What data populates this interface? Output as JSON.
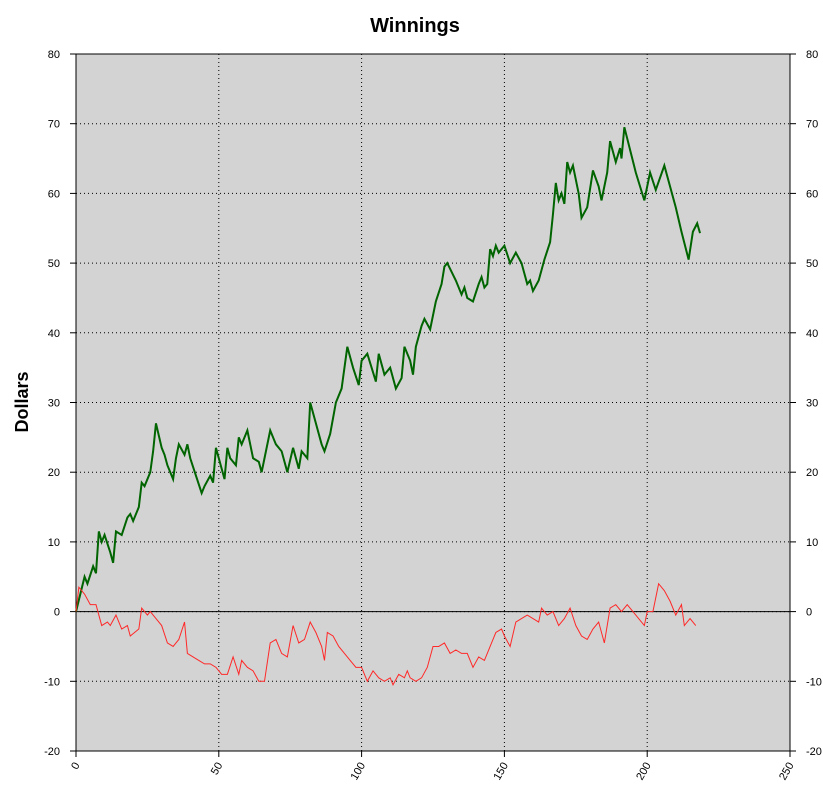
{
  "chart_data": {
    "type": "line",
    "title": "Winnings",
    "ylabel": "Dollars",
    "xlim": [
      0,
      250
    ],
    "xticks": [
      0,
      50,
      100,
      150,
      200,
      250
    ],
    "ylim": [
      -20,
      80
    ],
    "yticks": [
      -20,
      -10,
      0,
      10,
      20,
      30,
      40,
      50,
      60,
      70,
      80
    ],
    "grid": true,
    "background": "#d3d3d3",
    "series": [
      {
        "color": "#006400",
        "x": [
          0,
          3,
          4,
          6,
          7,
          8,
          9,
          10,
          12,
          13,
          14,
          16,
          18,
          19,
          20,
          22,
          23,
          24,
          26,
          27,
          28,
          30,
          31,
          32,
          34,
          35,
          36,
          38,
          39,
          40,
          42,
          44,
          45,
          47,
          48,
          49,
          50,
          52,
          53,
          54,
          56,
          57,
          58,
          60,
          61,
          62,
          64,
          65,
          66,
          68,
          70,
          72,
          74,
          76,
          78,
          79,
          81,
          82,
          84,
          86,
          87,
          89,
          91,
          93,
          95,
          97,
          99,
          100,
          102,
          105,
          106,
          108,
          110,
          112,
          114,
          115,
          117,
          118,
          119,
          121,
          122,
          124,
          126,
          128,
          129,
          130,
          133,
          135,
          136,
          137,
          139,
          141,
          142,
          143,
          144,
          145,
          146,
          147,
          148,
          150,
          152,
          154,
          156,
          158,
          159,
          160,
          162,
          164,
          166,
          167,
          168,
          169,
          170,
          171,
          172,
          173,
          174,
          176,
          177,
          179,
          181,
          183,
          184,
          186,
          187,
          189,
          190.5,
          191,
          192,
          196,
          199,
          201,
          203,
          206,
          210,
          212,
          214.5,
          216,
          217.5,
          218.5
        ],
        "values": [
          0,
          5,
          4,
          6.5,
          5.5,
          11.5,
          10,
          11,
          8.5,
          7,
          11.5,
          11,
          13.5,
          14,
          13,
          15,
          18.5,
          18,
          20,
          23,
          27,
          23.5,
          22.5,
          21,
          19,
          22,
          24,
          22.5,
          24,
          22,
          19.5,
          17,
          18,
          19.5,
          18.5,
          23.5,
          22,
          19,
          23.5,
          22,
          21,
          25,
          24,
          26,
          24,
          22,
          21.5,
          20,
          22,
          26,
          24,
          23,
          20,
          23.5,
          20.5,
          23,
          22,
          30,
          27,
          24,
          23,
          25.5,
          30,
          32,
          38,
          35,
          32.5,
          36,
          37,
          33,
          37,
          34,
          35,
          32,
          33.5,
          38,
          36,
          34,
          38,
          41,
          42,
          40.5,
          44.5,
          47,
          49.5,
          50,
          47.5,
          45.5,
          46.5,
          45,
          44.5,
          47,
          48,
          46.5,
          47,
          52,
          51,
          52.5,
          51.5,
          52.5,
          50,
          51.5,
          50,
          47,
          47.5,
          46,
          47.5,
          50.5,
          53,
          57,
          61.5,
          59,
          60,
          58.5,
          64.5,
          63,
          64,
          60,
          56.5,
          58,
          63.3,
          61,
          59,
          63,
          67.5,
          64.5,
          66.5,
          65,
          69.5,
          63,
          59,
          63,
          60.5,
          64,
          58,
          54.5,
          50.5,
          54.5,
          55.7,
          54.3
        ]
      },
      {
        "color": "#ff2828",
        "x": [
          0,
          1,
          3,
          5,
          7,
          9,
          11,
          12,
          14,
          16,
          18,
          19,
          22,
          23,
          25,
          26,
          28,
          30,
          32,
          34,
          36,
          38,
          39,
          41,
          43,
          45,
          47,
          49,
          51,
          53,
          55,
          57,
          58,
          60,
          62,
          64,
          66,
          68,
          70,
          72,
          74,
          76,
          78,
          80,
          82,
          84,
          86,
          87,
          88,
          90,
          92,
          94,
          96,
          98,
          100,
          102,
          104,
          106,
          108,
          110,
          111,
          113,
          115,
          116,
          117,
          119,
          121,
          123,
          125,
          127,
          129,
          131,
          133,
          135,
          137,
          139,
          141,
          143,
          145,
          147,
          149,
          150,
          152,
          154,
          156,
          158,
          160,
          162,
          163,
          165,
          167,
          169,
          171,
          173,
          175,
          177,
          179,
          181,
          183,
          185,
          187,
          189,
          191,
          193,
          195,
          197,
          199,
          200,
          202,
          204,
          206,
          208,
          210,
          212,
          213,
          215,
          217
        ],
        "values": [
          0,
          3.5,
          2.5,
          1,
          1,
          -2,
          -1.5,
          -2,
          -0.5,
          -2.5,
          -2,
          -3.5,
          -2.5,
          0.5,
          -0.5,
          0,
          -1,
          -2,
          -4.5,
          -5,
          -4,
          -1.5,
          -6,
          -6.5,
          -7,
          -7.5,
          -7.5,
          -8,
          -9,
          -9,
          -6.5,
          -9,
          -7,
          -8,
          -8.5,
          -10,
          -10,
          -4.5,
          -4,
          -6,
          -6.5,
          -2,
          -4.5,
          -4,
          -1.5,
          -3,
          -5,
          -7,
          -3,
          -3.5,
          -5,
          -6,
          -7,
          -8,
          -8,
          -10,
          -8.5,
          -9.5,
          -10,
          -9.5,
          -10.5,
          -9,
          -9.5,
          -8.5,
          -9.5,
          -10,
          -9.5,
          -8,
          -5,
          -5,
          -4.5,
          -6,
          -5.5,
          -6,
          -6,
          -8,
          -6.5,
          -7,
          -5,
          -3,
          -2.5,
          -3.5,
          -5,
          -1.5,
          -1,
          -0.5,
          -1,
          -1.5,
          0.5,
          -0.5,
          0,
          -2,
          -1,
          0.5,
          -2,
          -3.5,
          -4,
          -2.5,
          -1.5,
          -4.5,
          0.5,
          1,
          0,
          1,
          0,
          -1,
          -2,
          0,
          0,
          4,
          3,
          1.5,
          -0.5,
          1,
          -2,
          -1,
          -2
        ]
      }
    ]
  }
}
